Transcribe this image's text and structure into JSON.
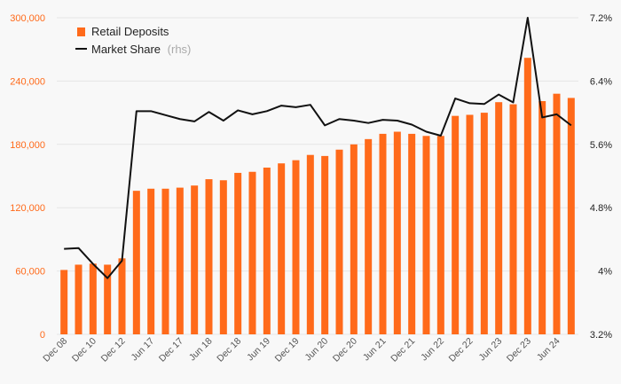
{
  "chart_data": {
    "type": "bar",
    "title": "",
    "xlabel": "",
    "ylabel": "",
    "ylim": [
      0,
      300000
    ],
    "y2lim": [
      3.2,
      7.2
    ],
    "y_ticks": [
      "0",
      "60,000",
      "120,000",
      "180,000",
      "240,000",
      "300,000"
    ],
    "y2_ticks": [
      "3.2%",
      "4%",
      "4.8%",
      "5.6%",
      "6.4%",
      "7.2%"
    ],
    "x_tick_labels": [
      "Dec 08",
      "Dec 10",
      "Dec 12",
      "Jun 17",
      "Dec 17",
      "Jun 18",
      "Dec 18",
      "Jun 19",
      "Dec 19",
      "Jun 20",
      "Dec 20",
      "Jun 21",
      "Dec 21",
      "Jun 22",
      "Dec 22",
      "Jun 23",
      "Dec 23",
      "Jun 24"
    ],
    "grid": true,
    "legend_position": "top-left",
    "colors": {
      "bars": "#ff6a1a",
      "line": "#111111",
      "left_ticks": "#ff6a1a"
    },
    "series": [
      {
        "name": "Retail Deposits",
        "type": "bar",
        "axis": "left",
        "values": [
          61000,
          66000,
          67000,
          66000,
          72000,
          136000,
          138000,
          138000,
          139000,
          141000,
          147000,
          146000,
          153000,
          154000,
          158000,
          162000,
          165000,
          170000,
          169000,
          175000,
          180000,
          185000,
          190000,
          192000,
          190000,
          188000,
          188000,
          207000,
          208000,
          210000,
          220000,
          218000,
          262000,
          221000,
          228000,
          224000
        ]
      },
      {
        "name": "Market Share",
        "name_suffix": "(rhs)",
        "type": "line",
        "axis": "right",
        "values": [
          4.28,
          4.29,
          4.09,
          3.91,
          4.13,
          6.02,
          6.02,
          5.97,
          5.92,
          5.89,
          6.01,
          5.9,
          6.03,
          5.98,
          6.02,
          6.09,
          6.07,
          6.1,
          5.84,
          5.92,
          5.9,
          5.87,
          5.91,
          5.9,
          5.85,
          5.76,
          5.71,
          6.18,
          6.12,
          6.11,
          6.23,
          6.13,
          7.2,
          5.94,
          5.98,
          5.84
        ]
      }
    ]
  }
}
